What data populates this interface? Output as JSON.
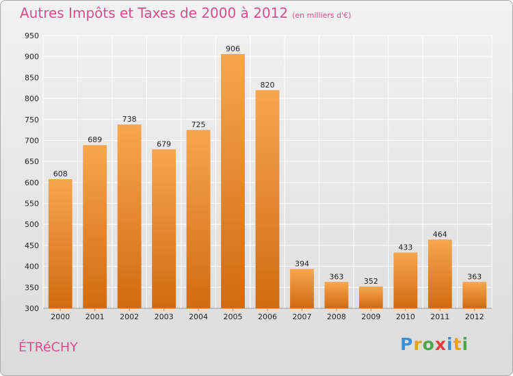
{
  "title": "Autres Impôts et Taxes de 2000 à 2012",
  "unit_label": "(en milliers d'€)",
  "commune": "ÉTRéCHY",
  "logo": {
    "text": "Proxiti",
    "letters": [
      {
        "ch": "P",
        "color": "#3b8fd6"
      },
      {
        "ch": "r",
        "color": "#e8a020"
      },
      {
        "ch": "o",
        "color": "#4aa84a"
      },
      {
        "ch": "x",
        "color": "#e83a3a"
      },
      {
        "ch": "i",
        "color": "#3b8fd6"
      },
      {
        "ch": "t",
        "color": "#e8a020"
      },
      {
        "ch": "i",
        "color": "#4aa84a"
      }
    ]
  },
  "colors": {
    "title": "#d64f8a",
    "bar_top": "#f7a650",
    "bar_bottom": "#d06b12",
    "grid": "#ffffff"
  },
  "chart_data": {
    "type": "bar",
    "title": "Autres Impôts et Taxes de 2000 à 2012",
    "subtitle": "(en milliers d'€)",
    "categories": [
      "2000",
      "2001",
      "2002",
      "2003",
      "2004",
      "2005",
      "2006",
      "2007",
      "2008",
      "2009",
      "2010",
      "2011",
      "2012"
    ],
    "values": [
      608,
      689,
      738,
      679,
      725,
      906,
      820,
      394,
      363,
      352,
      433,
      464,
      363
    ],
    "ylim": [
      300,
      950
    ],
    "yticks": [
      300,
      350,
      400,
      450,
      500,
      550,
      600,
      650,
      700,
      750,
      800,
      850,
      900,
      950
    ],
    "grid": true,
    "xlabel": "",
    "ylabel": ""
  }
}
